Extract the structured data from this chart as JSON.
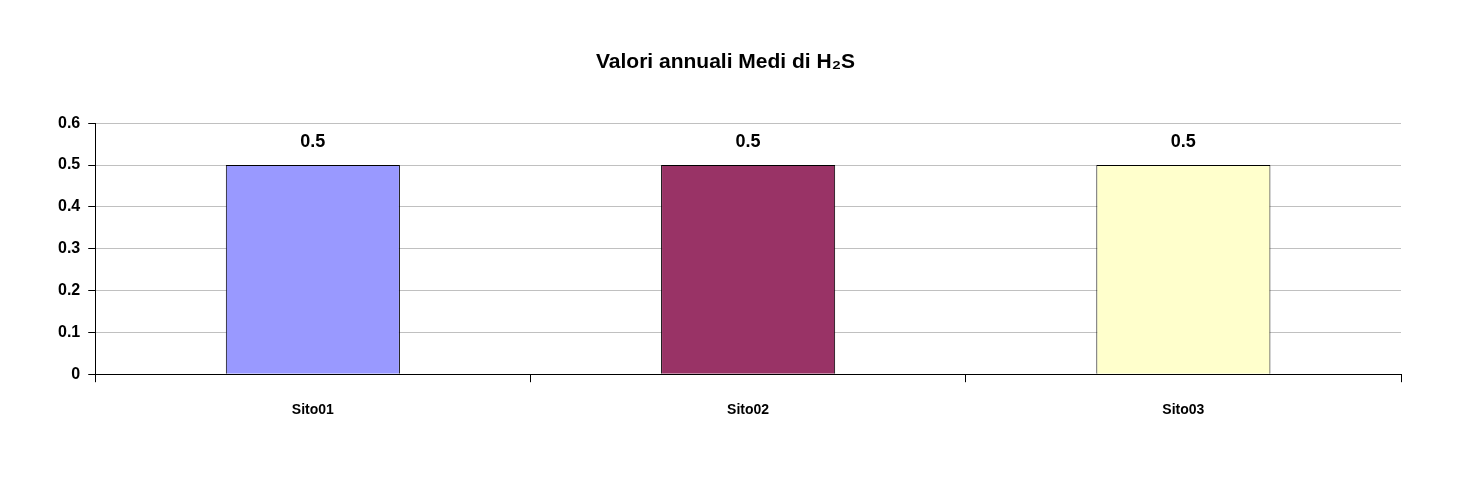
{
  "chart_data": {
    "type": "bar",
    "title": "Valori annuali Medi di H₂S",
    "categories": [
      "Sito01",
      "Sito02",
      "Sito03"
    ],
    "values": [
      0.5,
      0.5,
      0.5
    ],
    "colors": [
      "#9999ff",
      "#993366",
      "#ffffcc"
    ],
    "ylim": [
      0,
      0.6
    ],
    "yticks": [
      0,
      0.1,
      0.2,
      0.3,
      0.4,
      0.5,
      0.6
    ],
    "grid": "y",
    "data_labels": true,
    "legend": false
  }
}
